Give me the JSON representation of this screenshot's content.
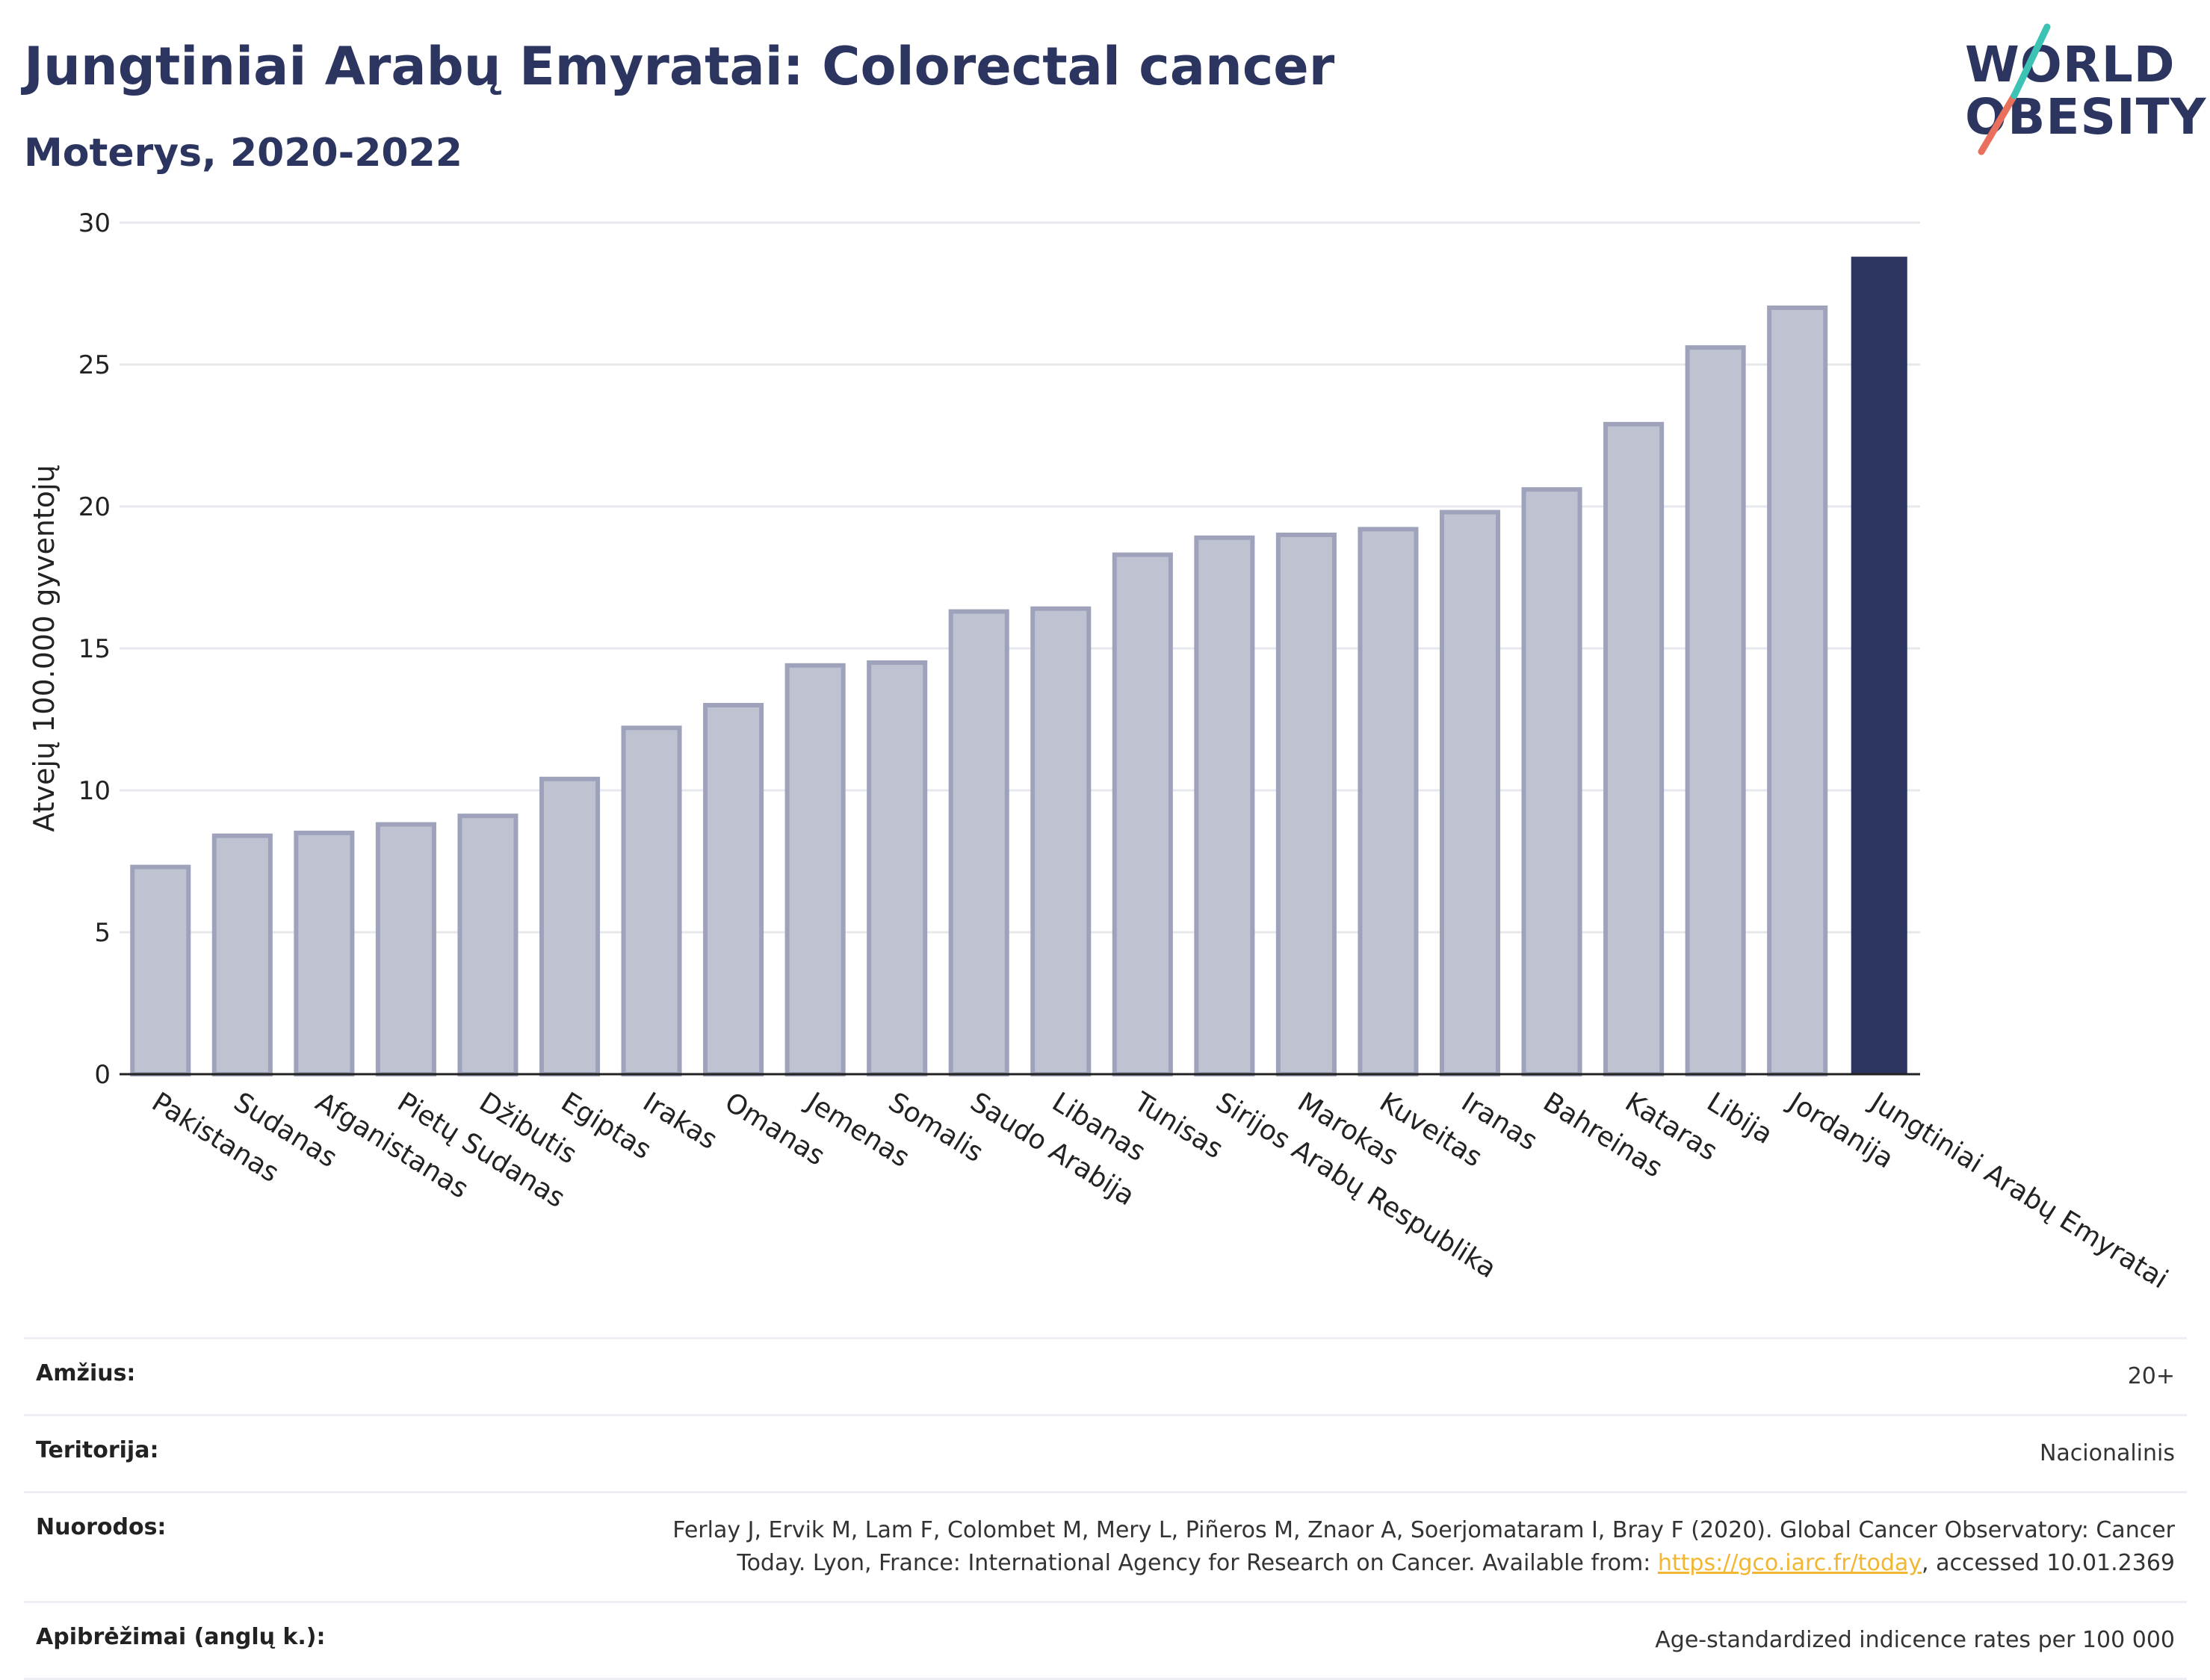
{
  "header": {
    "title": "Jungtiniai Arabų Emyratai: Colorectal cancer",
    "subtitle": "Moterys, 2020-2022"
  },
  "logo": {
    "line1": "WORLD",
    "line2": "OBESITY",
    "accent_colors": [
      "#e8705c",
      "#3cc3b4"
    ]
  },
  "colors": {
    "bar": "#bfc3d1",
    "bar_border": "#9ea3bb",
    "highlight": "#2b3560",
    "grid": "#e6e8ee",
    "link": "#f2b632"
  },
  "chart_data": {
    "type": "bar",
    "title": "Jungtiniai Arabų Emyratai: Colorectal cancer",
    "subtitle": "Moterys, 2020-2022",
    "ylabel": "Atvejų 100.000 gyventojų",
    "xlabel": "",
    "ylim": [
      0,
      30
    ],
    "yticks": [
      0,
      5,
      10,
      15,
      20,
      25,
      30
    ],
    "grid": true,
    "highlight": "Jungtiniai Arabų Emyratai",
    "categories": [
      "Pakistanas",
      "Sudanas",
      "Afganistanas",
      "Pietų Sudanas",
      "Džibutis",
      "Egiptas",
      "Irakas",
      "Omanas",
      "Jemenas",
      "Somalis",
      "Saudo Arabija",
      "Libanas",
      "Tunisas",
      "Sirijos Arabų Respublika",
      "Marokas",
      "Kuveitas",
      "Iranas",
      "Bahreinas",
      "Kataras",
      "Libija",
      "Jordanija",
      "Jungtiniai Arabų Emyratai"
    ],
    "values": [
      7.3,
      8.4,
      8.5,
      8.8,
      9.1,
      10.4,
      12.2,
      13.0,
      14.4,
      14.5,
      16.3,
      16.4,
      18.3,
      18.9,
      19.0,
      19.2,
      19.8,
      20.6,
      22.9,
      25.6,
      27.0,
      28.8
    ]
  },
  "meta": {
    "age_label": "Amžius:",
    "age_value": "20+",
    "territory_label": "Teritorija:",
    "territory_value": "Nacionalinis",
    "refs_label": "Nuorodos:",
    "refs_line1": "Ferlay J, Ervik M, Lam F, Colombet M, Mery L, Piñeros M, Znaor A, Soerjomataram I, Bray F (2020). Global Cancer Observatory: Cancer",
    "refs_line2_pre": "Today. Lyon, France: International Agency for Research on Cancer. Available from: ",
    "refs_link": "https://gco.iarc.fr/today",
    "refs_line2_post": ", accessed 10.01.2369",
    "defs_label": "Apibrėžimai (anglų k.):",
    "defs_value": "Age-standardized indicence rates per 100 000"
  }
}
